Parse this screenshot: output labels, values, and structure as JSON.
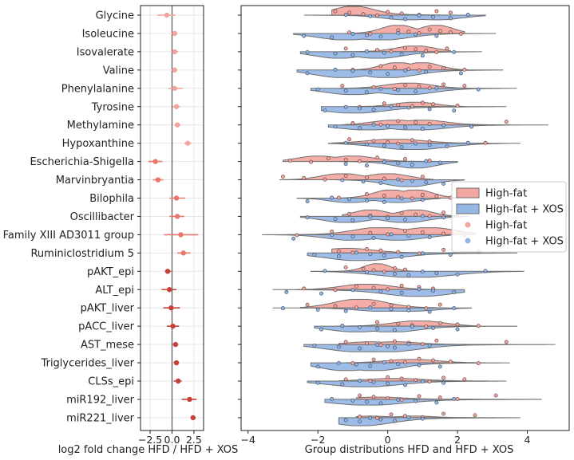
{
  "chart_data": [
    {
      "type": "scatter",
      "xlabel": "log2 fold change HFD / HFD + XOS",
      "xlim": [
        -3.6,
        3.6
      ],
      "xticks": [
        -2.5,
        0.0,
        2.5
      ],
      "xtick_labels": [
        "−2.5",
        "0.0",
        "2.5"
      ],
      "grid": true,
      "reference_line_x": 0,
      "categories": [
        "Glycine",
        "Isoleucine",
        "Isovalerate",
        "Valine",
        "Phenylalanine",
        "Tyrosine",
        "Methylamine",
        "Hypoxanthine",
        "Escherichia-Shigella",
        "Marvinbryantia",
        "Bilophila",
        "Oscillibacter",
        "Family XIII AD3011 group",
        "Ruminiclostridium 5",
        "pAKT_epi",
        "ALT_epi",
        "pAKT_liver",
        "pACC_liver",
        "AST_mese",
        "Triglycerides_liver",
        "CLSs_epi",
        "miR192_liver",
        "miR221_liver"
      ],
      "series": [
        {
          "values": [
            -0.6,
            0.3,
            0.3,
            0.3,
            0.3,
            0.5,
            0.6,
            1.8,
            -1.9,
            -1.6,
            0.5,
            0.6,
            1.0,
            1.3,
            -0.5,
            -0.3,
            -0.1,
            0.1,
            0.4,
            0.5,
            0.7,
            2.0,
            2.4
          ],
          "ci_low": [
            -1.7,
            -0.1,
            0.0,
            -0.1,
            -0.4,
            0.1,
            0.3,
            1.4,
            -2.7,
            -2.2,
            -0.3,
            -0.3,
            -0.9,
            0.6,
            -0.8,
            -1.2,
            -1.0,
            -0.6,
            0.1,
            0.2,
            0.2,
            1.1,
            2.1
          ],
          "ci_high": [
            0.4,
            0.6,
            0.7,
            0.6,
            1.2,
            0.9,
            1.0,
            2.2,
            -1.1,
            -1.0,
            1.5,
            1.4,
            3.0,
            2.1,
            -0.1,
            0.5,
            0.9,
            0.8,
            0.7,
            0.8,
            1.1,
            2.8,
            2.7
          ],
          "colors": [
            "#f3a49c",
            "#f3a49c",
            "#f3a49c",
            "#f3a49c",
            "#f3a49c",
            "#f3a49c",
            "#f3a49c",
            "#f3a49c",
            "#e8766b",
            "#e8766b",
            "#e8766b",
            "#e8766b",
            "#e8766b",
            "#e8766b",
            "#c8403a",
            "#c8403a",
            "#c8403a",
            "#c8403a",
            "#c8403a",
            "#c8403a",
            "#c8403a",
            "#c8403a",
            "#c8403a"
          ]
        }
      ]
    },
    {
      "type": "violin",
      "xlabel": "Group distributions HFD and HFD + XOS",
      "xlim": [
        -4.2,
        5.2
      ],
      "xticks": [
        -4,
        -2,
        0,
        2,
        4
      ],
      "xtick_labels": [
        "−4",
        "−2",
        "0",
        "2",
        "4"
      ],
      "legend_position": "right",
      "legend": [
        {
          "label": "High-fat",
          "kind": "patch",
          "color": "#f4a6a1"
        },
        {
          "label": "High-fat + XOS",
          "kind": "patch",
          "color": "#95b7e6"
        },
        {
          "label": "High-fat",
          "kind": "dot",
          "color": "#f4a6a1"
        },
        {
          "label": "High-fat + XOS",
          "kind": "dot",
          "color": "#95b7e6"
        }
      ],
      "series": [
        {
          "name": "High-fat",
          "color": "#f4a6a1",
          "ranges": [
            [
              -1.6,
              1.8
            ],
            [
              -1.2,
              2.2
            ],
            [
              -1.4,
              1.8
            ],
            [
              -1.2,
              2.3
            ],
            [
              -1.4,
              2.3
            ],
            [
              -1.0,
              2.2
            ],
            [
              -1.3,
              3.5
            ],
            [
              -1.6,
              2.9
            ],
            [
              -3.0,
              1.4
            ],
            [
              -3.1,
              1.3
            ],
            [
              -1.6,
              2.0
            ],
            [
              -1.3,
              2.2
            ],
            [
              -3.0,
              2.5
            ],
            [
              -1.6,
              2.7
            ],
            [
              -1.4,
              0.7
            ],
            [
              -2.6,
              1.4
            ],
            [
              -2.5,
              1.7
            ],
            [
              -1.5,
              2.6
            ],
            [
              -1.4,
              3.4
            ],
            [
              -1.2,
              2.8
            ],
            [
              -1.4,
              3.2
            ],
            [
              -0.9,
              3.3
            ],
            [
              -0.9,
              2.8
            ]
          ],
          "modes": [
            [
              -1.0
            ],
            [
              0.3,
              1.4
            ],
            [
              0.8
            ],
            [
              0.3,
              1.0
            ],
            [
              0.6
            ],
            [
              0.8
            ],
            [
              0.2,
              1.0
            ],
            [
              0.2
            ],
            [
              -2.0,
              -1.0
            ],
            [
              -1.3,
              0.0
            ],
            [
              0.1,
              0.8
            ],
            [
              -0.5,
              0.8
            ],
            [
              -0.2,
              1.2
            ],
            [
              -1.2
            ],
            [
              -0.3
            ],
            [
              -0.6
            ],
            [
              -0.8
            ],
            [
              0.9
            ],
            [
              -0.5,
              0.2
            ],
            [
              0.7
            ],
            [
              0.2
            ],
            [
              -0.3
            ],
            [
              -0.5,
              0.8
            ]
          ],
          "heights": [
            0.85,
            0.78,
            0.55,
            0.7,
            0.5,
            0.42,
            0.45,
            0.38,
            0.52,
            0.58,
            0.78,
            0.62,
            0.68,
            0.45,
            0.72,
            0.52,
            0.82,
            0.5,
            0.25,
            0.32,
            0.25,
            0.22,
            0.15
          ],
          "points": [
            [
              -1.5,
              -1.1,
              -0.7,
              -0.3,
              0.0,
              0.4,
              0.9,
              1.4,
              1.8
            ],
            [
              -1.1,
              -0.5,
              0.3,
              0.6,
              0.9,
              1.2,
              1.5,
              1.8,
              2.1
            ],
            [
              -1.2,
              -0.3,
              0.1,
              0.5,
              0.8,
              1.1,
              1.4,
              1.7
            ],
            [
              -1.0,
              -0.2,
              0.2,
              0.6,
              0.9,
              1.2,
              1.6,
              2.2
            ],
            [
              -1.3,
              -0.4,
              0.2,
              0.5,
              0.9,
              1.2,
              1.6,
              2.2
            ],
            [
              -0.8,
              -0.1,
              0.3,
              0.7,
              1.0,
              1.3,
              2.0
            ],
            [
              -1.0,
              -0.2,
              0.3,
              0.8,
              1.2,
              1.6,
              3.4
            ],
            [
              -1.1,
              -0.4,
              0.0,
              0.3,
              0.7,
              1.2,
              2.8
            ],
            [
              -2.8,
              -2.2,
              -1.7,
              -1.2,
              -0.8,
              -0.3,
              0.5,
              1.2
            ],
            [
              -3.0,
              -2.4,
              -1.8,
              -1.2,
              -0.6,
              -0.1,
              0.4,
              1.0
            ],
            [
              -1.4,
              -0.6,
              -0.1,
              0.3,
              0.7,
              1.0,
              1.4,
              1.8
            ],
            [
              -1.1,
              -0.5,
              0.0,
              0.4,
              0.8,
              1.2,
              1.6,
              2.0
            ],
            [
              -2.6,
              -1.6,
              -0.5,
              0.0,
              0.5,
              1.0,
              1.6,
              2.2
            ],
            [
              -1.4,
              -1.0,
              -0.6,
              -0.2,
              0.3,
              0.9,
              1.6,
              2.6
            ],
            [
              -1.2,
              -0.7,
              -0.4,
              -0.1,
              0.2,
              0.5
            ],
            [
              -2.4,
              -1.5,
              -0.9,
              -0.4,
              0.0,
              0.4,
              0.9,
              1.3
            ],
            [
              -2.3,
              -1.5,
              -0.9,
              -0.4,
              0.1,
              0.6,
              1.1,
              1.5
            ],
            [
              -1.3,
              -0.3,
              0.3,
              0.7,
              1.1,
              1.5,
              2.0,
              2.6
            ],
            [
              -1.2,
              -0.6,
              -0.2,
              0.2,
              0.6,
              1.0,
              1.4,
              3.4
            ],
            [
              -1.0,
              -0.4,
              0.1,
              0.5,
              0.9,
              1.3,
              1.8,
              2.6
            ],
            [
              -1.2,
              -0.5,
              0.0,
              0.4,
              0.8,
              1.2,
              1.6,
              2.2
            ],
            [
              -0.8,
              -0.4,
              0.0,
              0.4,
              0.9,
              1.5,
              2.0,
              3.1
            ],
            [
              -0.8,
              -0.3,
              0.1,
              0.5,
              1.0,
              1.6,
              2.5
            ]
          ]
        },
        {
          "name": "High-fat + XOS",
          "color": "#95b7e6",
          "ranges": [
            [
              -2.4,
              2.8
            ],
            [
              -2.7,
              3.1
            ],
            [
              -2.5,
              2.7
            ],
            [
              -2.6,
              3.3
            ],
            [
              -2.2,
              3.7
            ],
            [
              -1.9,
              3.4
            ],
            [
              -1.7,
              4.6
            ],
            [
              -1.7,
              3.8
            ],
            [
              -1.4,
              2.0
            ],
            [
              -1.5,
              2.2
            ],
            [
              -2.6,
              1.5
            ],
            [
              -2.5,
              2.3
            ],
            [
              -3.6,
              1.8
            ],
            [
              -2.3,
              3.7
            ],
            [
              -2.2,
              3.9
            ],
            [
              -3.3,
              2.2
            ],
            [
              -3.3,
              2.4
            ],
            [
              -2.1,
              3.7
            ],
            [
              -2.4,
              4.8
            ],
            [
              -2.2,
              3.5
            ],
            [
              -2.3,
              3.4
            ],
            [
              -1.8,
              4.4
            ],
            [
              -1.4,
              3.8
            ]
          ],
          "modes": [
            [
              0.6,
              1.4
            ],
            [
              -1.2,
              -0.2
            ],
            [
              -1.4,
              -0.3
            ],
            [
              -1.3,
              0.0
            ],
            [
              -1.0,
              0.5
            ],
            [
              -1.0
            ],
            [
              -0.6,
              0.8
            ],
            [
              0.7
            ],
            [
              0.8
            ],
            [
              0.6
            ],
            [
              -1.1,
              0.3
            ],
            [
              -1.2,
              0.5
            ],
            [
              -1.0,
              0.3
            ],
            [
              -0.8
            ],
            [
              0.8
            ],
            [
              0.9
            ],
            [
              -0.1,
              0.6
            ],
            [
              -0.9,
              0.1
            ],
            [
              -0.8,
              -0.1
            ],
            [
              -1.2,
              -0.4
            ],
            [
              -0.7
            ],
            [
              -0.6
            ],
            [
              -0.8
            ]
          ],
          "heights": [
            0.45,
            0.62,
            0.62,
            0.72,
            0.6,
            0.62,
            0.48,
            0.6,
            0.62,
            0.65,
            0.42,
            0.58,
            0.52,
            0.72,
            0.58,
            0.65,
            0.32,
            0.55,
            0.7,
            0.75,
            0.55,
            0.55,
            0.78
          ],
          "points": [
            [
              -1.2,
              -0.5,
              0.1,
              0.5,
              0.9,
              1.3,
              1.8,
              2.3
            ],
            [
              -2.4,
              -1.6,
              -1.0,
              -0.6,
              -0.2,
              0.3,
              0.8,
              1.4
            ],
            [
              -2.3,
              -1.5,
              -1.0,
              -0.6,
              -0.1,
              0.4,
              1.0,
              1.9
            ],
            [
              -2.3,
              -1.5,
              -1.0,
              -0.5,
              0.0,
              0.5,
              1.1,
              2.1
            ],
            [
              -2.0,
              -1.2,
              -0.6,
              -0.2,
              0.3,
              0.8,
              1.4,
              2.6
            ],
            [
              -1.8,
              -1.2,
              -0.8,
              -0.4,
              0.1,
              0.6,
              1.2,
              1.9
            ],
            [
              -1.5,
              -0.8,
              -0.4,
              0.0,
              0.5,
              1.0,
              1.6,
              2.4
            ],
            [
              -1.2,
              -0.6,
              -0.1,
              0.4,
              0.8,
              1.2,
              1.7,
              2.3
            ],
            [
              -1.2,
              -0.6,
              -0.1,
              0.3,
              0.7,
              1.1,
              1.5
            ],
            [
              -1.3,
              -0.7,
              -0.2,
              0.3,
              0.7,
              1.1,
              1.6
            ],
            [
              -2.3,
              -1.6,
              -1.1,
              -0.6,
              -0.1,
              0.4,
              1.0
            ],
            [
              -2.3,
              -1.5,
              -1.0,
              -0.5,
              0.0,
              0.5,
              1.0,
              1.6
            ],
            [
              -2.7,
              -1.6,
              -1.0,
              -0.4,
              0.1,
              0.6,
              1.2
            ],
            [
              -2.1,
              -1.4,
              -0.9,
              -0.5,
              -0.1,
              0.4,
              1.0,
              1.8
            ],
            [
              -1.8,
              -0.6,
              0.2,
              0.6,
              1.0,
              1.4,
              2.0,
              2.8
            ],
            [
              -2.9,
              -1.9,
              -1.0,
              -0.2,
              0.4,
              0.9,
              1.3,
              1.9
            ],
            [
              -3.0,
              -2.0,
              -1.2,
              -0.5,
              0.1,
              0.6,
              1.2,
              1.9
            ],
            [
              -1.9,
              -1.3,
              -0.8,
              -0.3,
              0.2,
              0.7,
              1.3,
              2.0
            ],
            [
              -2.1,
              -1.4,
              -0.8,
              -0.3,
              0.0,
              0.2,
              0.6,
              1.2
            ],
            [
              -2.0,
              -1.4,
              -0.9,
              -0.5,
              -0.1,
              0.3,
              0.9,
              1.5
            ],
            [
              -2.0,
              -1.3,
              -0.8,
              -0.4,
              0.0,
              0.5,
              1.0,
              1.6
            ],
            [
              -1.6,
              -1.0,
              -0.6,
              -0.2,
              0.3,
              0.8,
              1.4,
              1.9
            ],
            [
              -1.2,
              -0.8,
              -0.5,
              -0.2,
              0.2,
              0.6,
              1.0
            ]
          ]
        }
      ]
    }
  ]
}
